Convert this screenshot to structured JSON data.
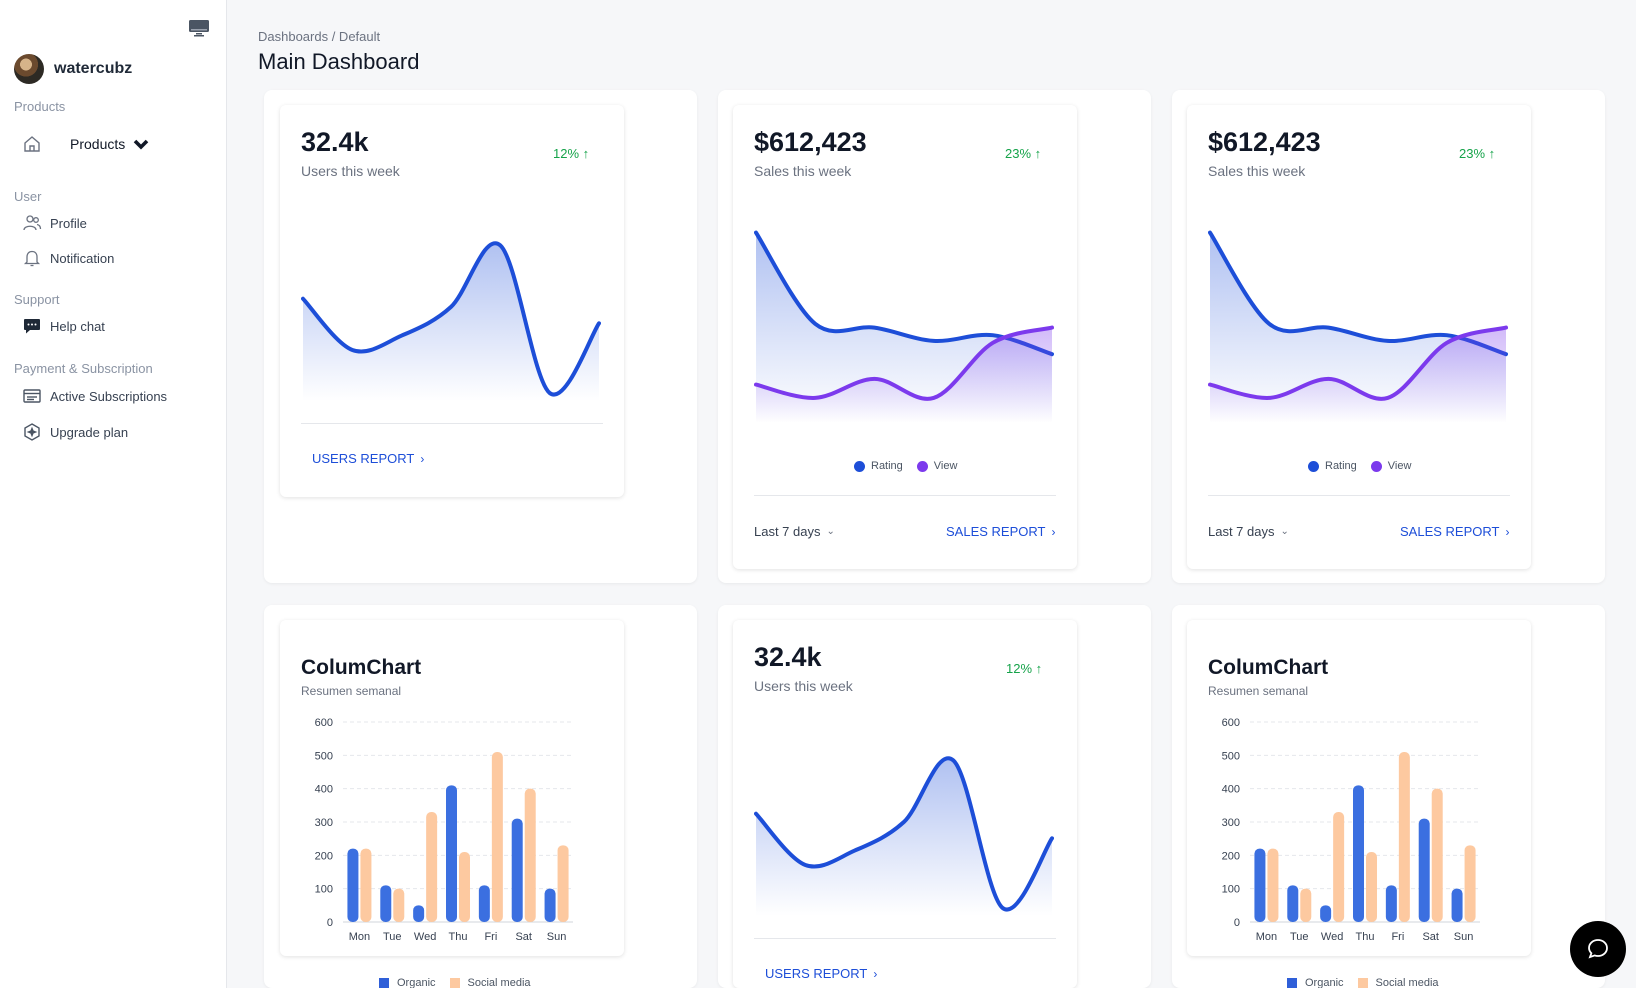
{
  "sidebar": {
    "username": "watercubz",
    "sections": {
      "products": "Products",
      "user": "User",
      "support": "Support",
      "payment": "Payment & Subscription"
    },
    "items": {
      "products": "Products",
      "profile": "Profile",
      "notification": "Notification",
      "help_chat": "Help chat",
      "active_subscriptions": "Active Subscriptions",
      "upgrade_plan": "Upgrade plan"
    }
  },
  "header": {
    "breadcrumb": "Dashboards / Default",
    "title": "Main Dashboard"
  },
  "cards": {
    "users_1": {
      "value": "32.4k",
      "label": "Users this week",
      "delta": "12% ↑",
      "link": "USERS REPORT"
    },
    "sales_1": {
      "value": "$612,423",
      "label": "Sales this week",
      "delta": "23% ↑",
      "period": "Last 7 days",
      "link": "SALES REPORT"
    },
    "sales_2": {
      "value": "$612,423",
      "label": "Sales this week",
      "delta": "23% ↑",
      "period": "Last 7 days",
      "link": "SALES REPORT"
    },
    "column_1": {
      "title": "ColumChart",
      "subtitle": "Resumen semanal"
    },
    "users_2": {
      "value": "32.4k",
      "label": "Users this week",
      "delta": "12% ↑",
      "link": "USERS REPORT"
    },
    "column_2": {
      "title": "ColumChart",
      "subtitle": "Resumen semanal"
    }
  },
  "colors": {
    "blue": "#1d4ed8",
    "purple": "#7c3aed",
    "organic": "#3b6fe0",
    "social": "#fdc9a0",
    "green": "#16a34a"
  },
  "chart_data": [
    {
      "type": "area",
      "series": [
        {
          "values": [
            46,
            21,
            28,
            42,
            72,
            0,
            34
          ]
        }
      ],
      "ylim": [
        0,
        80
      ]
    },
    {
      "type": "area",
      "series": [
        {
          "name": "Rating",
          "values": [
            96,
            48,
            46,
            39,
            42,
            32
          ]
        },
        {
          "name": "View",
          "values": [
            16,
            9,
            19,
            9,
            38,
            46
          ]
        }
      ],
      "ylim": [
        0,
        100
      ]
    },
    {
      "type": "area",
      "series": [
        {
          "name": "Rating",
          "values": [
            96,
            48,
            46,
            39,
            42,
            32
          ]
        },
        {
          "name": "View",
          "values": [
            16,
            9,
            19,
            9,
            38,
            46
          ]
        }
      ],
      "ylim": [
        0,
        100
      ]
    },
    {
      "type": "bar",
      "title": "ColumChart",
      "subtitle": "Resumen semanal",
      "categories": [
        "Mon",
        "Tue",
        "Wed",
        "Thu",
        "Fri",
        "Sat",
        "Sun"
      ],
      "series": [
        {
          "name": "Organic",
          "values": [
            220,
            110,
            50,
            410,
            110,
            310,
            100
          ]
        },
        {
          "name": "Social media",
          "values": [
            220,
            100,
            330,
            210,
            510,
            400,
            230
          ]
        }
      ],
      "yticks": [
        0,
        100,
        200,
        300,
        400,
        500,
        600
      ],
      "ylim": [
        0,
        600
      ]
    },
    {
      "type": "area",
      "series": [
        {
          "values": [
            46,
            21,
            28,
            42,
            72,
            0,
            34
          ]
        }
      ],
      "ylim": [
        0,
        80
      ]
    },
    {
      "type": "bar",
      "title": "ColumChart",
      "subtitle": "Resumen semanal",
      "categories": [
        "Mon",
        "Tue",
        "Wed",
        "Thu",
        "Fri",
        "Sat",
        "Sun"
      ],
      "series": [
        {
          "name": "Organic",
          "values": [
            220,
            110,
            50,
            410,
            110,
            310,
            100
          ]
        },
        {
          "name": "Social media",
          "values": [
            220,
            100,
            330,
            210,
            510,
            400,
            230
          ]
        }
      ],
      "yticks": [
        0,
        100,
        200,
        300,
        400,
        500,
        600
      ],
      "ylim": [
        0,
        600
      ]
    }
  ]
}
